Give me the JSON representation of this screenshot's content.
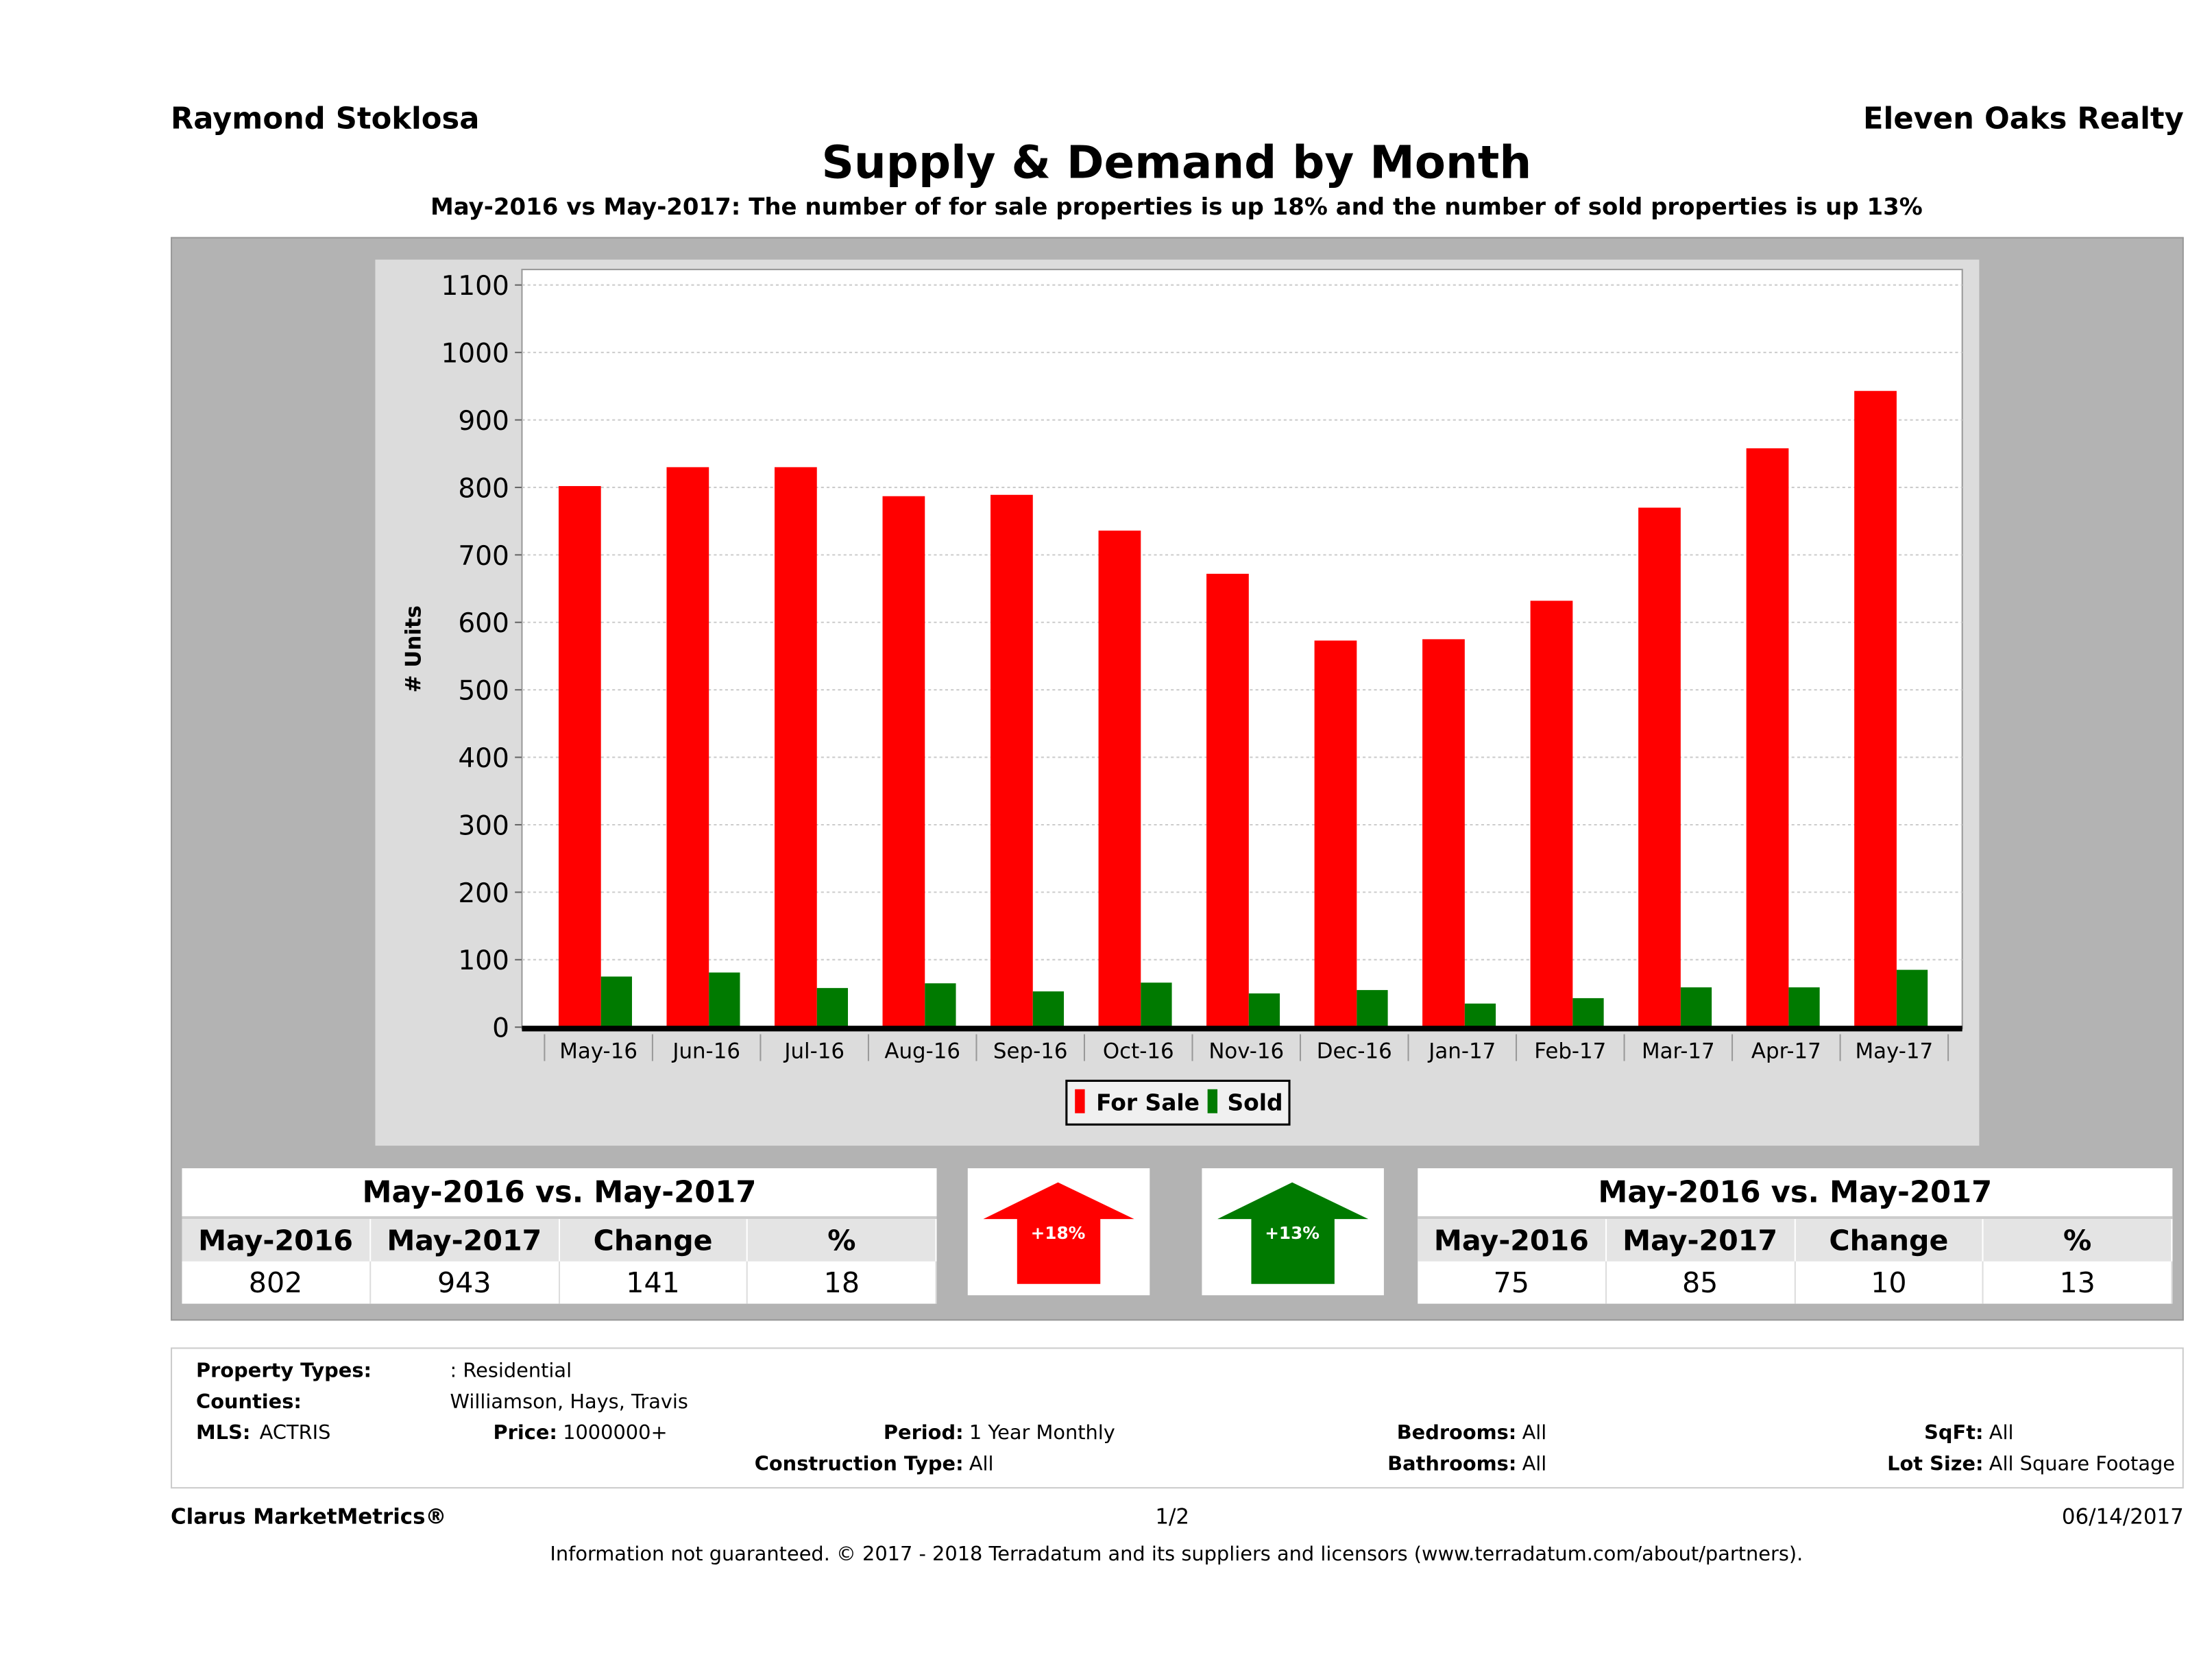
{
  "header": {
    "agent": "Raymond Stoklosa",
    "company": "Eleven Oaks Realty",
    "title": "Supply & Demand by Month",
    "subtitle": "May-2016 vs May-2017: The number of for sale properties is up 18% and the number of sold properties is up 13%"
  },
  "chart_data": {
    "type": "bar",
    "ylabel": "# Units",
    "xlabel": "",
    "ylim": [
      0,
      1100
    ],
    "yticks": [
      "0",
      "100",
      "200",
      "300",
      "400",
      "500",
      "600",
      "700",
      "800",
      "900",
      "1000",
      "1100"
    ],
    "grid": true,
    "legend_placement": "bottom-center",
    "categories": [
      "May-16",
      "Jun-16",
      "Jul-16",
      "Aug-16",
      "Sep-16",
      "Oct-16",
      "Nov-16",
      "Dec-16",
      "Jan-17",
      "Feb-17",
      "Mar-17",
      "Apr-17",
      "May-17"
    ],
    "series": [
      {
        "name": "For Sale",
        "color": "#ff0000",
        "values": [
          802,
          830,
          830,
          787,
          789,
          736,
          672,
          573,
          575,
          632,
          770,
          858,
          943
        ]
      },
      {
        "name": "Sold",
        "color": "#007a00",
        "values": [
          75,
          81,
          58,
          65,
          53,
          66,
          50,
          55,
          35,
          43,
          59,
          59,
          85
        ]
      }
    ]
  },
  "for_sale_table": {
    "title": "May-2016 vs. May-2017",
    "headers": [
      "May-2016",
      "May-2017",
      "Change",
      "%"
    ],
    "values": [
      "802",
      "943",
      "141",
      "18"
    ]
  },
  "sold_table": {
    "title": "May-2016 vs. May-2017",
    "headers": [
      "May-2016",
      "May-2017",
      "Change",
      "%"
    ],
    "values": [
      "75",
      "85",
      "10",
      "13"
    ]
  },
  "arrows": {
    "for_sale": {
      "label": "+18%",
      "color": "#ff0000"
    },
    "sold": {
      "label": "+13%",
      "color": "#007a00"
    }
  },
  "criteria": {
    "property_types_label": "Property Types:",
    "property_types": ": Residential",
    "counties_label": "Counties:",
    "counties": "Williamson, Hays, Travis",
    "mls_label": "MLS:",
    "mls": "ACTRIS",
    "price_label": "Price:",
    "price": "1000000+",
    "period_label": "Period:",
    "period": "1 Year Monthly",
    "construction_label": "Construction Type:",
    "construction": "All",
    "bedrooms_label": "Bedrooms:",
    "bedrooms": "All",
    "bathrooms_label": "Bathrooms:",
    "bathrooms": "All",
    "sqft_label": "SqFt:",
    "sqft": "All",
    "lot_label": "Lot Size:",
    "lot": "All Square Footage"
  },
  "footer": {
    "brand": "Clarus MarketMetrics®",
    "page": "1/2",
    "date": "06/14/2017",
    "disclaimer": "Information not guaranteed. © 2017 - 2018 Terradatum and its suppliers and licensors (www.terradatum.com/about/partners)."
  }
}
